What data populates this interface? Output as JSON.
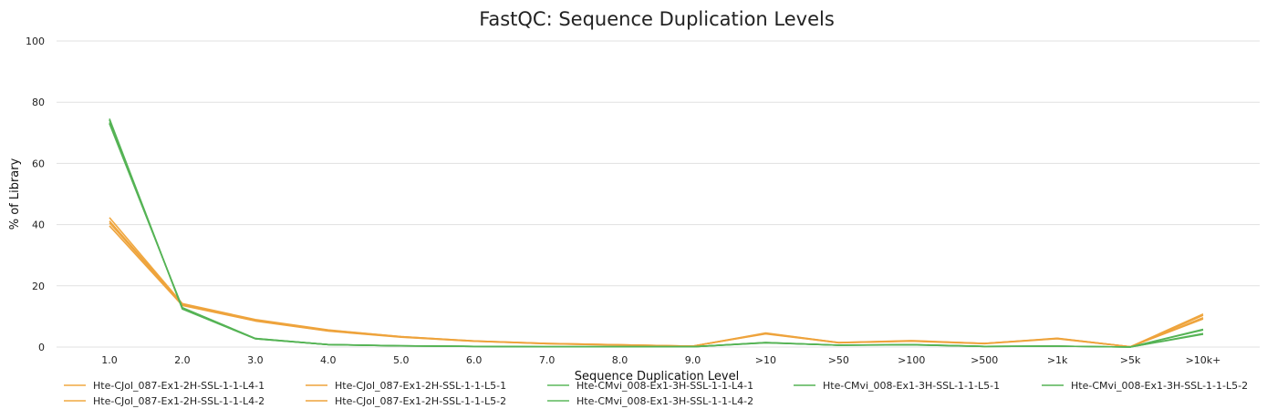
{
  "chart_data": {
    "type": "line",
    "title": "FastQC: Sequence Duplication Levels",
    "xlabel": "Sequence Duplication Level",
    "ylabel": "% of Library",
    "categories": [
      "1.0",
      "2.0",
      "3.0",
      "4.0",
      "5.0",
      "6.0",
      "7.0",
      "8.0",
      "9.0",
      ">10",
      ">50",
      ">100",
      ">500",
      ">1k",
      ">5k",
      ">10k+"
    ],
    "ylim": [
      0,
      100
    ],
    "yticks": [
      0,
      20,
      40,
      60,
      80,
      100
    ],
    "grid": true,
    "legend_position": "bottom",
    "series": [
      {
        "name": "Hte-CJol_087-Ex1-2H-SSL-1-1-L4-1",
        "color": "#f0a840",
        "values": [
          42.3,
          14.2,
          9.0,
          5.6,
          3.4,
          2.0,
          1.2,
          0.7,
          0.3,
          4.6,
          1.5,
          2.1,
          1.2,
          2.9,
          0.1,
          10.8
        ]
      },
      {
        "name": "Hte-CJol_087-Ex1-2H-SSL-1-1-L4-2",
        "color": "#f0a840",
        "values": [
          40.6,
          13.8,
          8.6,
          5.3,
          3.3,
          1.9,
          1.1,
          0.7,
          0.3,
          4.4,
          1.4,
          2.0,
          1.2,
          2.8,
          0.1,
          9.6
        ]
      },
      {
        "name": "Hte-CJol_087-Ex1-2H-SSL-1-1-L5-1",
        "color": "#eea33c",
        "values": [
          41.2,
          14.0,
          8.8,
          5.5,
          3.4,
          2.0,
          1.2,
          0.7,
          0.3,
          4.5,
          1.5,
          2.0,
          1.2,
          2.8,
          0.1,
          10.4
        ]
      },
      {
        "name": "Hte-CJol_087-Ex1-2H-SSL-1-1-L5-2",
        "color": "#eea33c",
        "values": [
          39.6,
          13.6,
          8.5,
          5.2,
          3.2,
          1.9,
          1.1,
          0.6,
          0.3,
          4.3,
          1.4,
          1.9,
          1.1,
          2.7,
          0.1,
          9.2
        ]
      },
      {
        "name": "Hte-CMvi_008-Ex1-3H-SSL-1-1-L4-1",
        "color": "#5cb85c",
        "values": [
          74.6,
          12.4,
          2.7,
          0.8,
          0.4,
          0.2,
          0.1,
          0.1,
          0.1,
          1.5,
          0.6,
          0.8,
          0.2,
          0.3,
          0.0,
          5.8
        ]
      },
      {
        "name": "Hte-CMvi_008-Ex1-3H-SSL-1-1-L4-2",
        "color": "#5cb85c",
        "values": [
          73.4,
          12.8,
          2.8,
          0.8,
          0.4,
          0.2,
          0.1,
          0.1,
          0.1,
          1.4,
          0.6,
          0.7,
          0.2,
          0.3,
          0.0,
          4.4
        ]
      },
      {
        "name": "Hte-CMvi_008-Ex1-3H-SSL-1-1-L5-1",
        "color": "#55b355",
        "values": [
          74.2,
          12.5,
          2.7,
          0.8,
          0.4,
          0.2,
          0.1,
          0.1,
          0.1,
          1.5,
          0.6,
          0.8,
          0.2,
          0.3,
          0.0,
          5.6
        ]
      },
      {
        "name": "Hte-CMvi_008-Ex1-3H-SSL-1-1-L5-2",
        "color": "#55b355",
        "values": [
          73.0,
          12.9,
          2.8,
          0.8,
          0.4,
          0.2,
          0.1,
          0.1,
          0.1,
          1.4,
          0.6,
          0.7,
          0.2,
          0.3,
          0.0,
          4.2
        ]
      }
    ],
    "legend_order": [
      0,
      2,
      4,
      6,
      7,
      1,
      3,
      5
    ]
  }
}
